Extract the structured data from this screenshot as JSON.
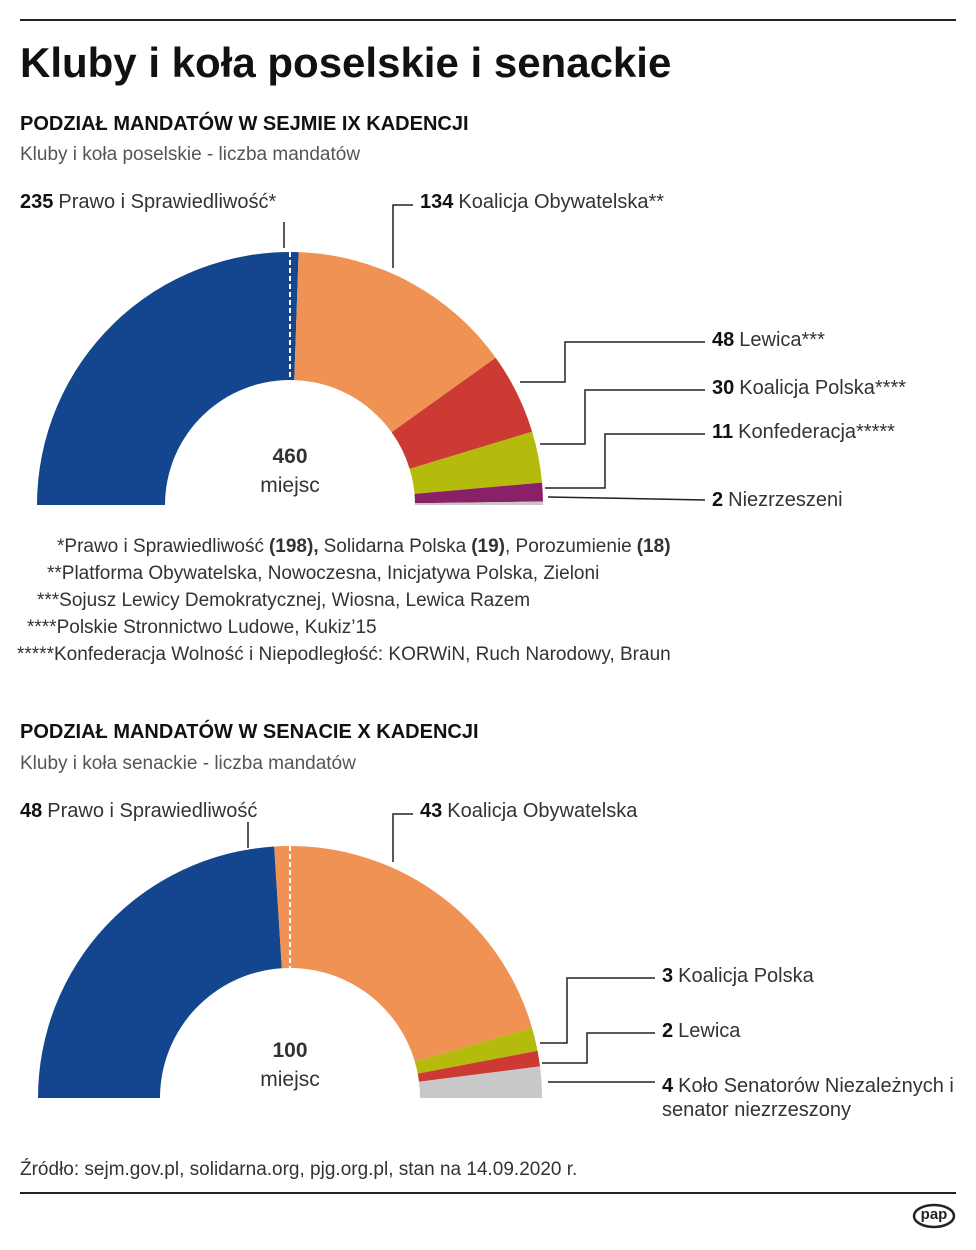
{
  "title": "Kluby i koła poselskie i senackie",
  "chart_data": [
    {
      "type": "half-donut",
      "title": "PODZIAŁ MANDATÓW W SEJMIE IX KADENCJI",
      "subtitle": "Kluby i koła poselskie - liczba mandatów",
      "total": 460,
      "total_label": "miejsc",
      "categories": [
        "Prawo i Sprawiedliwość*",
        "Koalicja Obywatelska**",
        "Lewica***",
        "Koalicja Polska****",
        "Konfederacja*****",
        "Niezrzeszeni"
      ],
      "values": [
        235,
        134,
        48,
        30,
        11,
        2
      ],
      "colors": [
        "#13468f",
        "#f09254",
        "#cd3a34",
        "#b5bb0c",
        "#8a2068",
        "#c8c8c8"
      ],
      "footnotes": [
        {
          "parts": [
            {
              "text": "*Prawo i Sprawiedliwość",
              "bold": false
            },
            {
              "text": "(198),",
              "bold": true
            },
            {
              "text": "Solidarna Polska",
              "bold": false
            },
            {
              "text": "(19)",
              "bold": true
            },
            {
              "text": ", Porozumienie",
              "bold": false
            },
            {
              "text": "(18)",
              "bold": true
            }
          ]
        },
        {
          "parts": [
            {
              "text": "**Platforma Obywatelska, Nowoczesna, Inicjatywa Polska, Zieloni",
              "bold": false
            }
          ]
        },
        {
          "parts": [
            {
              "text": "***Sojusz Lewicy Demokratycznej, Wiosna, Lewica Razem",
              "bold": false
            }
          ]
        },
        {
          "parts": [
            {
              "text": "****Polskie Stronnictwo Ludowe, Kukiz’15",
              "bold": false
            }
          ]
        },
        {
          "parts": [
            {
              "text": "*****Konfederacja Wolność i Niepodległość: KORWiN, Ruch Narodowy, Braun",
              "bold": false
            }
          ]
        }
      ]
    },
    {
      "type": "half-donut",
      "title": "PODZIAŁ MANDATÓW W SENACIE X KADENCJI",
      "subtitle": "Kluby i koła senackie - liczba mandatów",
      "total": 100,
      "total_label": "miejsc",
      "categories": [
        "Prawo i Sprawiedliwość",
        "Koalicja Obywatelska",
        "Koalicja Polska",
        "Lewica",
        "Koło Senatorów Niezależnych i senator niezrzeszony"
      ],
      "values": [
        48,
        43,
        3,
        2,
        4
      ],
      "colors": [
        "#13468f",
        "#f09254",
        "#b5bb0c",
        "#cd3a34",
        "#c8c8c8"
      ],
      "footnotes": []
    }
  ],
  "source": "Źródło: sejm.gov.pl, solidarna.org, pjg.org.pl, stan na 14.09.2020 r.",
  "logo": "pap"
}
